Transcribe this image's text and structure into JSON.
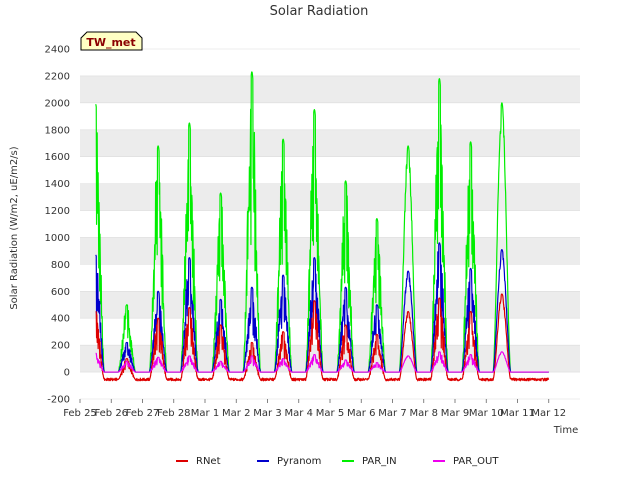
{
  "chart_data": {
    "type": "line",
    "title": "Solar Radiation",
    "xlabel": "Time",
    "ylabel": "Solar Radiation (W/m2, uE/m2/s)",
    "station_badge": "TW_met",
    "ylim": [
      -200,
      2400
    ],
    "yticks": [
      -200,
      0,
      200,
      400,
      600,
      800,
      1000,
      1200,
      1400,
      1600,
      1800,
      2000,
      2200,
      2400
    ],
    "xlim": [
      0,
      16
    ],
    "xticks": [
      {
        "label": "Feb 25",
        "day": 0
      },
      {
        "label": "Feb 26",
        "day": 1
      },
      {
        "label": "Feb 27",
        "day": 2
      },
      {
        "label": "Feb 28",
        "day": 3
      },
      {
        "label": "Mar 1",
        "day": 4
      },
      {
        "label": "Mar 2",
        "day": 5
      },
      {
        "label": "Mar 3",
        "day": 6
      },
      {
        "label": "Mar 4",
        "day": 7
      },
      {
        "label": "Mar 5",
        "day": 8
      },
      {
        "label": "Mar 6",
        "day": 9
      },
      {
        "label": "Mar 7",
        "day": 10
      },
      {
        "label": "Mar 8",
        "day": 11
      },
      {
        "label": "Mar 9",
        "day": 12
      },
      {
        "label": "Mar 10",
        "day": 13
      },
      {
        "label": "Mar 11",
        "day": 14
      },
      {
        "label": "Mar 12",
        "day": 15
      }
    ],
    "grid": "horizontal bands",
    "legend_position": "bottom",
    "series": [
      {
        "name": "RNet",
        "color": "#dd0000",
        "daily_peak": [
          450,
          100,
          400,
          480,
          350,
          220,
          300,
          530,
          350,
          280,
          450,
          550,
          450,
          580
        ],
        "night_value": -55
      },
      {
        "name": "Pyranom",
        "color": "#0000cc",
        "daily_peak": [
          870,
          220,
          600,
          850,
          540,
          630,
          720,
          850,
          630,
          500,
          750,
          960,
          770,
          910
        ],
        "night_value": 0
      },
      {
        "name": "PAR_IN",
        "color": "#00ee00",
        "daily_peak": [
          1990,
          500,
          1680,
          1850,
          1330,
          2230,
          1730,
          1950,
          1420,
          1140,
          1680,
          2180,
          1710,
          2000
        ],
        "night_value": 0
      },
      {
        "name": "PAR_OUT",
        "color": "#ee00ee",
        "daily_peak": [
          140,
          80,
          110,
          120,
          80,
          120,
          100,
          130,
          90,
          70,
          120,
          150,
          130,
          150
        ],
        "night_value": 0
      }
    ],
    "peak_days": [
      0.5,
      1.5,
      2.5,
      3.5,
      4.5,
      5.5,
      6.5,
      7.5,
      8.5,
      9.5,
      10.5,
      11.5,
      12.5,
      13.5
    ]
  }
}
